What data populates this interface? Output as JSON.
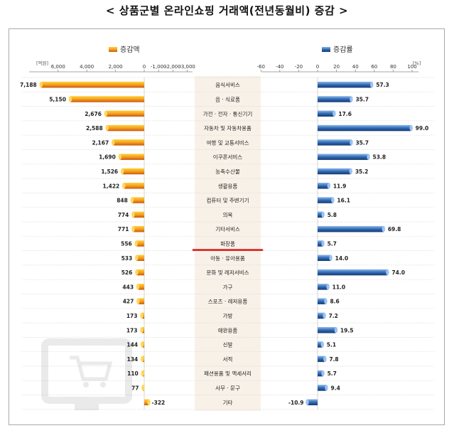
{
  "title": "< 상품군별 온라인쇼핑 거래액(전년동월비) 증감 >",
  "chart_data": [
    {
      "type": "bar",
      "orientation": "horizontal",
      "legend": "증감액",
      "unit": "[억원]",
      "ticks": [
        "6,000",
        "4,000",
        "2,000",
        "0",
        "-1,000",
        "-2,000",
        "-3,000"
      ],
      "tick_values": [
        6000,
        4000,
        2000,
        0,
        -1000,
        -2000,
        -3000
      ],
      "color": "#f28c1e",
      "categories": [
        "음식서비스",
        "음 · 식료품",
        "가전 · 전자 · 통신기기",
        "자동차 및 자동차용품",
        "여행 및 교통서비스",
        "이쿠폰서비스",
        "농축수산물",
        "생활용품",
        "컴퓨터 및 주변기기",
        "의복",
        "기타서비스",
        "화장품",
        "아동 · 유아용품",
        "문화 및 레저서비스",
        "가구",
        "스포츠 · 레저용품",
        "가방",
        "애완용품",
        "신발",
        "서적",
        "패션용품 및 액세서리",
        "사무 · 문구",
        "기타"
      ],
      "values": [
        7188,
        5150,
        2676,
        2588,
        2167,
        1690,
        1526,
        1422,
        848,
        774,
        771,
        556,
        533,
        526,
        443,
        427,
        173,
        173,
        144,
        134,
        110,
        77,
        -322
      ],
      "value_labels": [
        "7,188",
        "5,150",
        "2,676",
        "2,588",
        "2,167",
        "1,690",
        "1,526",
        "1,422",
        "848",
        "774",
        "771",
        "556",
        "533",
        "526",
        "443",
        "427",
        "173",
        "173",
        "144",
        "134",
        "110",
        "77",
        "-322"
      ]
    },
    {
      "type": "bar",
      "orientation": "horizontal",
      "legend": "증감률",
      "unit": "[%]",
      "ticks": [
        "-60",
        "-40",
        "-20",
        "0",
        "20",
        "40",
        "60",
        "80",
        "100"
      ],
      "tick_values": [
        -60,
        -40,
        -20,
        0,
        20,
        40,
        60,
        80,
        100
      ],
      "color": "#2f6bb5",
      "categories": [
        "음식서비스",
        "음 · 식료품",
        "가전 · 전자 · 통신기기",
        "자동차 및 자동차용품",
        "여행 및 교통서비스",
        "이쿠폰서비스",
        "농축수산물",
        "생활용품",
        "컴퓨터 및 주변기기",
        "의복",
        "기타서비스",
        "화장품",
        "아동 · 유아용품",
        "문화 및 레저서비스",
        "가구",
        "스포츠 · 레저용품",
        "가방",
        "애완용품",
        "신발",
        "서적",
        "패션용품 및 액세서리",
        "사무 · 문구",
        "기타"
      ],
      "values": [
        57.3,
        35.7,
        17.6,
        99.0,
        35.7,
        53.8,
        35.2,
        11.9,
        16.1,
        5.8,
        69.8,
        5.7,
        14.0,
        74.0,
        11.0,
        8.6,
        7.2,
        19.5,
        5.1,
        7.8,
        5.7,
        9.4,
        -10.9
      ],
      "value_labels": [
        "57.3",
        "35.7",
        "17.6",
        "99.0",
        "35.7",
        "53.8",
        "35.2",
        "11.9",
        "16.1",
        "5.8",
        "69.8",
        "5.7",
        "14.0",
        "74.0",
        "11.0",
        "8.6",
        "7.2",
        "19.5",
        "5.1",
        "7.8",
        "5.7",
        "9.4",
        "-10.9"
      ]
    }
  ],
  "highlight_category": "화장품"
}
